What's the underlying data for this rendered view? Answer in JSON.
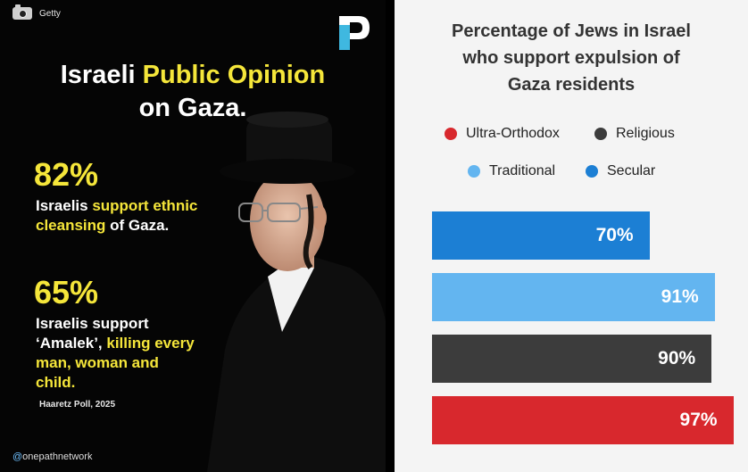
{
  "left_panel": {
    "photo_credit": "Getty",
    "headline": {
      "part1": "Israeli ",
      "highlight": "Public Opinion",
      "line2": "on Gaza."
    },
    "stats": [
      {
        "value": "82%",
        "lines": [
          [
            {
              "t": "Israelis ",
              "hl": false
            },
            {
              "t": "support ethnic",
              "hl": true
            }
          ],
          [
            {
              "t": "cleansing",
              "hl": true
            },
            {
              "t": " of Gaza.",
              "hl": false
            }
          ]
        ]
      },
      {
        "value": "65%",
        "lines": [
          [
            {
              "t": "Israelis support",
              "hl": false
            }
          ],
          [
            {
              "t": "‘Amalek’, ",
              "hl": false
            },
            {
              "t": "killing every",
              "hl": true
            }
          ],
          [
            {
              "t": "man, woman and",
              "hl": true
            }
          ],
          [
            {
              "t": "child.",
              "hl": true
            }
          ]
        ]
      }
    ],
    "source": "Haaretz Poll, 2025",
    "handle_at": "@",
    "handle": "onepathnetwork",
    "colors": {
      "highlight": "#f5e63a",
      "logo_accent": "#3fb8e0"
    }
  },
  "chart_data": {
    "type": "bar",
    "orientation": "horizontal",
    "title": "Percentage of Jews in Israel who support expulsion of Gaza residents",
    "title_lines": [
      "Percentage of Jews in Israel",
      "who support expulsion of",
      "Gaza residents"
    ],
    "legend": [
      {
        "name": "Ultra-Orthodox",
        "color": "#d8282d"
      },
      {
        "name": "Religious",
        "color": "#3c3c3c"
      },
      {
        "name": "Traditional",
        "color": "#63b5f0"
      },
      {
        "name": "Secular",
        "color": "#1c7fd4"
      }
    ],
    "bars": [
      {
        "category": "Secular",
        "value": 70,
        "label": "70%",
        "color": "#1c7fd4"
      },
      {
        "category": "Traditional",
        "value": 91,
        "label": "91%",
        "color": "#63b5f0"
      },
      {
        "category": "Religious",
        "value": 90,
        "label": "90%",
        "color": "#3c3c3c"
      },
      {
        "category": "Ultra-Orthodox",
        "value": 97,
        "label": "97%",
        "color": "#d8282d"
      }
    ],
    "xlim": [
      0,
      100
    ],
    "grid": false,
    "legend_position": "top"
  }
}
